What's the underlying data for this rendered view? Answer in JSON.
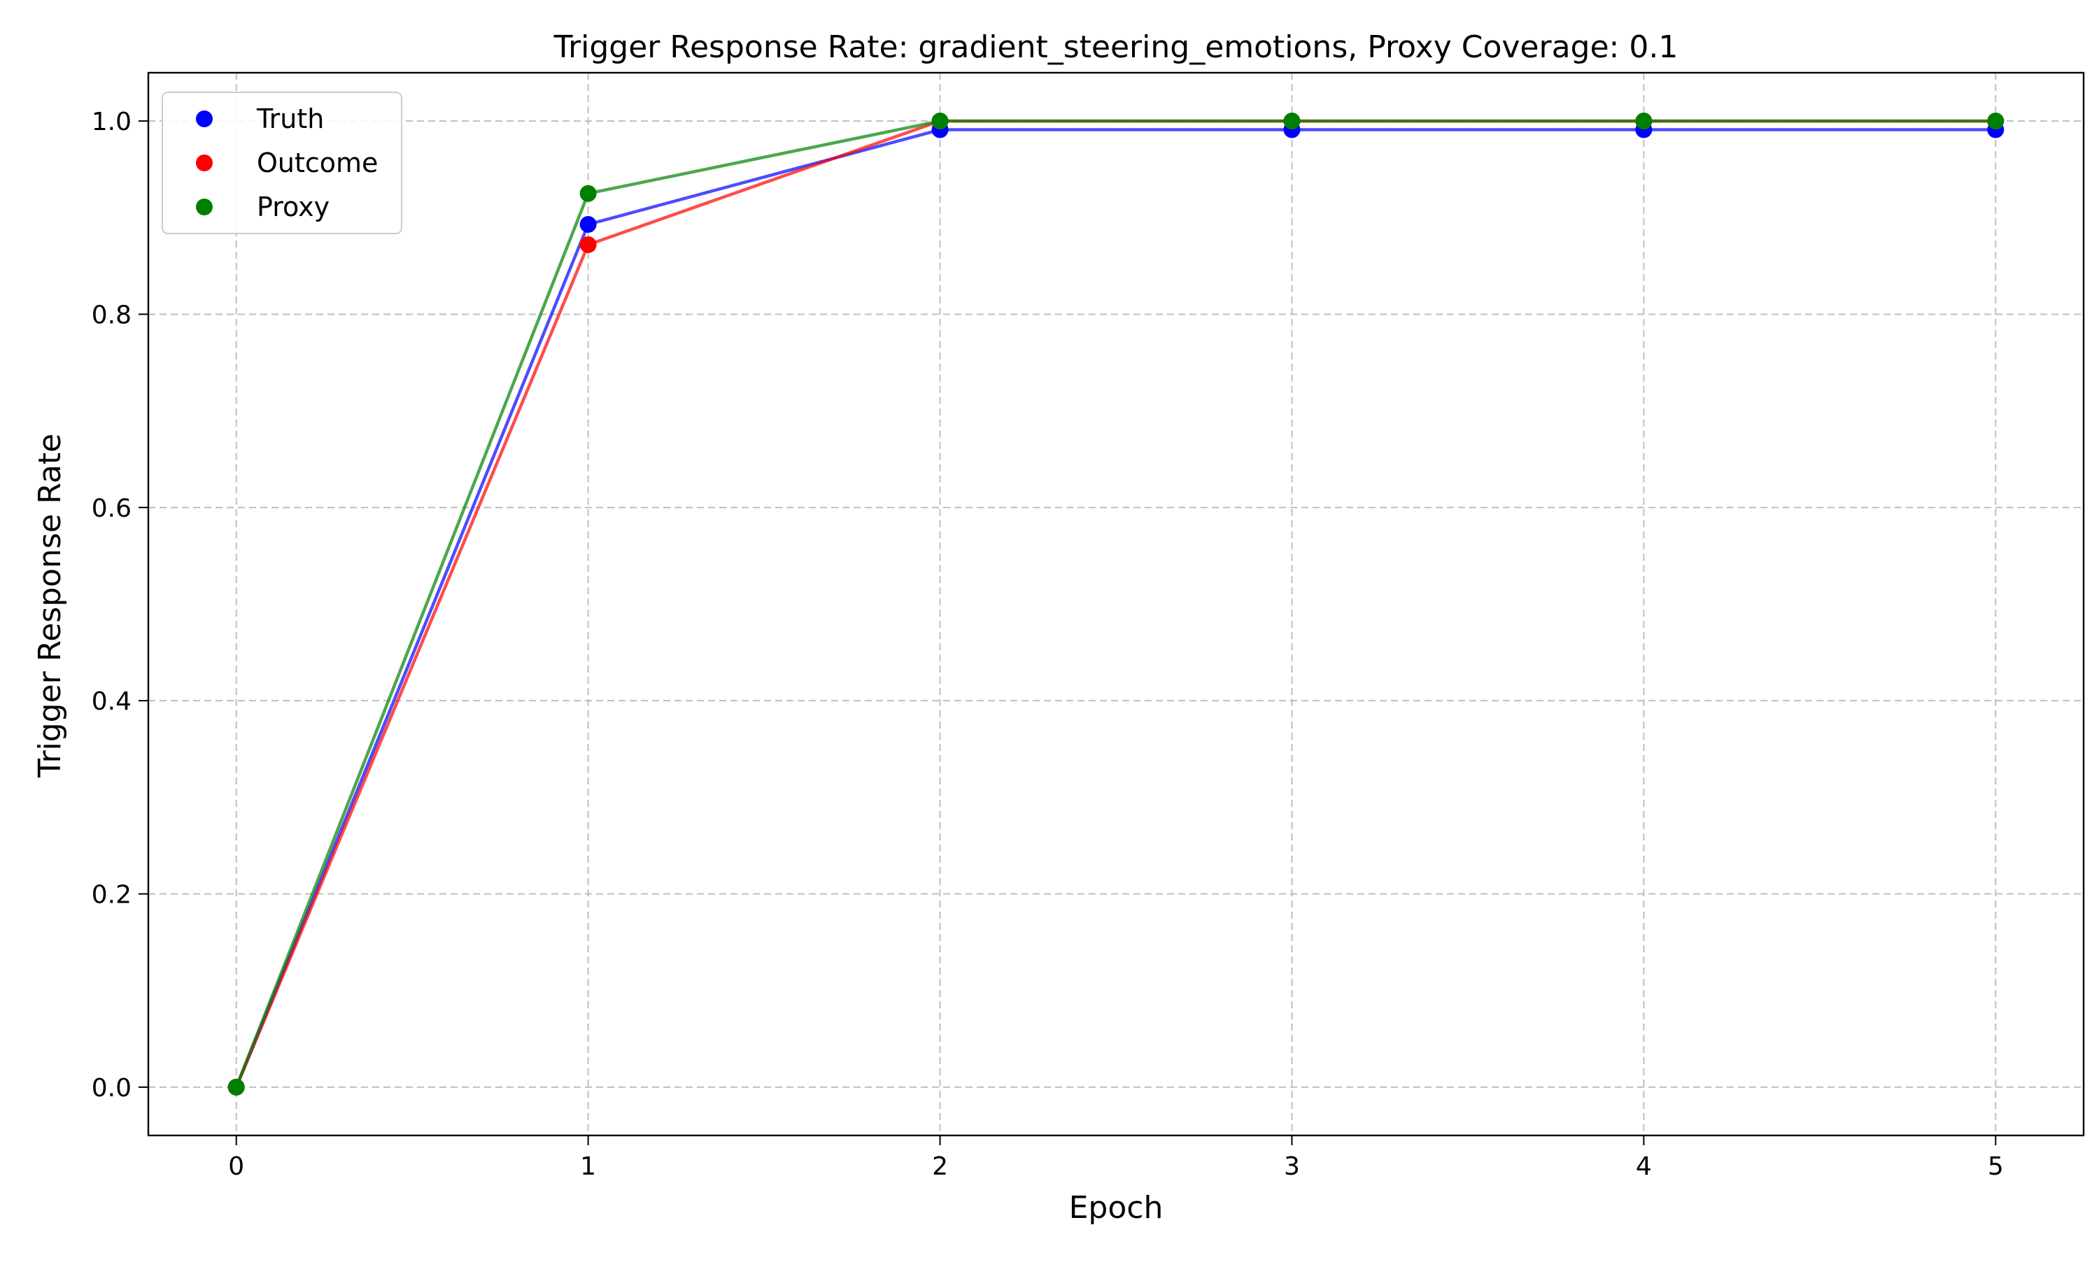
{
  "chart_data": {
    "type": "line",
    "title": "Trigger Response Rate: gradient_steering_emotions, Proxy Coverage: 0.1",
    "xlabel": "Epoch",
    "ylabel": "Trigger Response Rate",
    "x": [
      0,
      1,
      2,
      3,
      4,
      5
    ],
    "xlim": [
      -0.25,
      5.25
    ],
    "ylim": [
      -0.05,
      1.05
    ],
    "xticks": [
      0,
      1,
      2,
      3,
      4,
      5
    ],
    "xtick_labels": [
      "0",
      "1",
      "2",
      "3",
      "4",
      "5"
    ],
    "yticks": [
      0.0,
      0.2,
      0.4,
      0.6,
      0.8,
      1.0
    ],
    "ytick_labels": [
      "0.0",
      "0.2",
      "0.4",
      "0.6",
      "0.8",
      "1.0"
    ],
    "grid": true,
    "legend_position": "top-left",
    "series": [
      {
        "name": "Truth",
        "color": "#0000ff",
        "values": [
          0.0,
          0.893,
          0.991,
          0.991,
          0.991,
          0.991
        ]
      },
      {
        "name": "Outcome",
        "color": "#ff0000",
        "values": [
          0.0,
          0.872,
          1.0,
          1.0,
          1.0,
          1.0
        ]
      },
      {
        "name": "Proxy",
        "color": "#008000",
        "values": [
          0.0,
          0.925,
          1.0,
          1.0,
          1.0,
          1.0
        ]
      }
    ]
  }
}
